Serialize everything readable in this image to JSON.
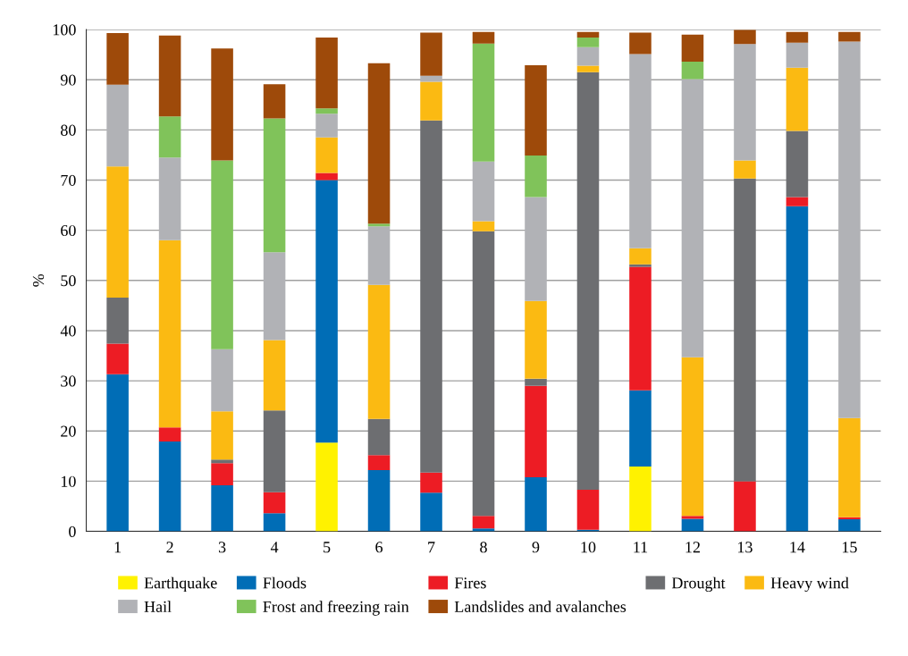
{
  "chart_data": {
    "type": "bar",
    "stacked": true,
    "ylabel": "%",
    "categories": [
      "1",
      "2",
      "3",
      "4",
      "5",
      "6",
      "7",
      "8",
      "9",
      "10",
      "11",
      "12",
      "13",
      "14",
      "15"
    ],
    "series": [
      {
        "name": "Earthquake",
        "color": "#fff200",
        "values": [
          0,
          0,
          0,
          0,
          17.7,
          0,
          0,
          0,
          0,
          0,
          12.9,
          0,
          0,
          0,
          0
        ]
      },
      {
        "name": "Floods",
        "color": "#006db6",
        "values": [
          31.3,
          17.9,
          9.2,
          3.6,
          52.3,
          12.2,
          7.7,
          0.6,
          10.8,
          0.3,
          15.2,
          2.5,
          0,
          64.8,
          2.4
        ]
      },
      {
        "name": "Fires",
        "color": "#ed1c24",
        "values": [
          6.1,
          2.8,
          4.4,
          4.2,
          1.4,
          3.0,
          4.0,
          2.5,
          18.2,
          8.0,
          24.6,
          0.6,
          10.0,
          1.8,
          0.4
        ]
      },
      {
        "name": "Drought",
        "color": "#6d6e71",
        "values": [
          9.2,
          null,
          0.7,
          16.3,
          0,
          7.2,
          70.2,
          56.7,
          1.4,
          83.2,
          0.5,
          0,
          60.3,
          13.2,
          0
        ]
      },
      {
        "name": "Heavy wind",
        "color": "#fbba12",
        "values": [
          26.1,
          37.3,
          9.6,
          14.0,
          7.1,
          26.7,
          7.7,
          2.0,
          15.5,
          1.3,
          3.2,
          31.6,
          3.6,
          12.6,
          19.8
        ]
      },
      {
        "name": "Hail",
        "color": "#b1b2b6",
        "values": [
          16.3,
          16.5,
          12.4,
          17.5,
          4.7,
          11.7,
          1.2,
          11.9,
          20.7,
          3.7,
          38.7,
          55.4,
          23.2,
          5.0,
          75.0
        ]
      },
      {
        "name": "Frost and freezing rain",
        "color": "#80c35a",
        "values": [
          0,
          8.2,
          37.6,
          26.7,
          1.1,
          0.5,
          0,
          23.5,
          8.3,
          1.9,
          0,
          3.5,
          0,
          0,
          0
        ]
      },
      {
        "name": "Landslides and avalanches",
        "color": "#9e4a0a",
        "values": [
          10.3,
          16.1,
          22.3,
          6.8,
          14.1,
          32.0,
          8.6,
          2.3,
          18.0,
          1.1,
          4.3,
          5.4,
          2.8,
          2.1,
          1.9
        ]
      }
    ],
    "ylim": [
      0,
      100
    ],
    "yticks": [
      0,
      10,
      20,
      30,
      40,
      50,
      60,
      70,
      80,
      90,
      100
    ],
    "grid": "y",
    "legend": "bottom"
  }
}
